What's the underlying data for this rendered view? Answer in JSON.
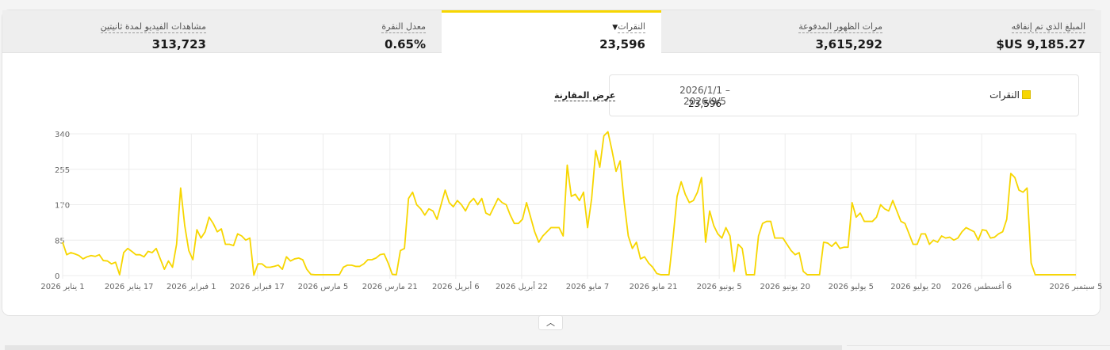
{
  "metrics": [
    {
      "key": "spend",
      "label": "المبلغ الذي تم إنفاقه",
      "value": "$US 9,185.27"
    },
    {
      "key": "impressions",
      "label": "مرات الظهور المدفوعة",
      "value": "3,615,292"
    },
    {
      "key": "clicks",
      "label": "النقرات",
      "value": "23,596",
      "active": true
    },
    {
      "key": "ctr",
      "label": "معدل النقرة",
      "value": "0.65%"
    },
    {
      "key": "views",
      "label": "مشاهدات الفيديو لمدة ثانيتين",
      "value": "313,723"
    }
  ],
  "legend": {
    "label": "النقرات",
    "date_range": "2026/1/1 – 2026/9/5",
    "total": "23,596"
  },
  "compare_label": "عرض المقارنة",
  "colors": {
    "accent": "#f7d600",
    "grid": "#ececec",
    "axis_text": "#666666"
  },
  "icons": {
    "metric_caret": "caret-down-icon",
    "collapse": "chevron-up-icon"
  },
  "chart_data": {
    "type": "line",
    "title": "",
    "xlabel": "",
    "ylabel": "",
    "ylim": [
      0,
      340
    ],
    "yticks": [
      0,
      85,
      170,
      255,
      340
    ],
    "grid": true,
    "x_start": "2026/1/1",
    "x_end": "2026/9/5",
    "xtick_labels": [
      "1 يناير 2026",
      "17 يناير 2026",
      "1 فبراير 2026",
      "17 فبراير 2026",
      "5 مارس 2026",
      "21 مارس 2026",
      "6 أبريل 2026",
      "22 أبريل 2026",
      "7 مايو 2026",
      "21 مايو 2026",
      "5 يونيو 2026",
      "20 يونيو 2026",
      "5 يوليو 2026",
      "20 يوليو 2026",
      "6 أغسطس 2026",
      "5 سبتمبر 2026"
    ],
    "series": [
      {
        "name": "النقرات",
        "color": "#f7d600",
        "values": [
          80,
          50,
          55,
          52,
          48,
          40,
          45,
          48,
          46,
          50,
          36,
          35,
          28,
          32,
          2,
          55,
          65,
          58,
          50,
          50,
          45,
          58,
          55,
          65,
          40,
          15,
          35,
          20,
          75,
          210,
          120,
          60,
          38,
          110,
          90,
          105,
          140,
          125,
          105,
          112,
          75,
          75,
          72,
          100,
          95,
          85,
          90,
          1,
          28,
          28,
          20,
          20,
          22,
          25,
          15,
          45,
          35,
          40,
          42,
          38,
          15,
          3,
          2,
          2,
          2,
          2,
          2,
          2,
          2,
          20,
          25,
          25,
          22,
          22,
          28,
          38,
          38,
          42,
          50,
          52,
          30,
          3,
          2,
          60,
          65,
          185,
          200,
          170,
          160,
          145,
          160,
          155,
          135,
          170,
          205,
          175,
          165,
          180,
          170,
          155,
          175,
          185,
          170,
          185,
          150,
          145,
          165,
          185,
          175,
          170,
          145,
          125,
          125,
          135,
          175,
          140,
          105,
          80,
          95,
          105,
          115,
          115,
          115,
          95,
          265,
          190,
          195,
          180,
          200,
          115,
          185,
          300,
          260,
          335,
          345,
          300,
          250,
          275,
          175,
          95,
          65,
          80,
          40,
          45,
          30,
          20,
          5,
          2,
          2,
          2,
          90,
          190,
          225,
          195,
          175,
          180,
          200,
          235,
          80,
          155,
          120,
          100,
          90,
          115,
          95,
          10,
          75,
          65,
          2,
          2,
          2,
          95,
          125,
          130,
          130,
          90,
          90,
          90,
          75,
          60,
          50,
          55,
          10,
          2,
          2,
          2,
          2,
          80,
          78,
          70,
          80,
          65,
          68,
          68,
          175,
          140,
          150,
          130,
          130,
          130,
          140,
          170,
          160,
          155,
          180,
          155,
          130,
          125,
          100,
          75,
          75,
          100,
          100,
          75,
          85,
          80,
          95,
          90,
          92,
          85,
          90,
          105,
          115,
          110,
          105,
          85,
          110,
          108,
          90,
          92,
          100,
          105,
          135,
          245,
          235,
          205,
          200,
          210,
          30,
          2,
          2,
          2,
          2,
          2,
          2,
          2,
          2,
          2,
          2,
          2
        ]
      }
    ]
  }
}
